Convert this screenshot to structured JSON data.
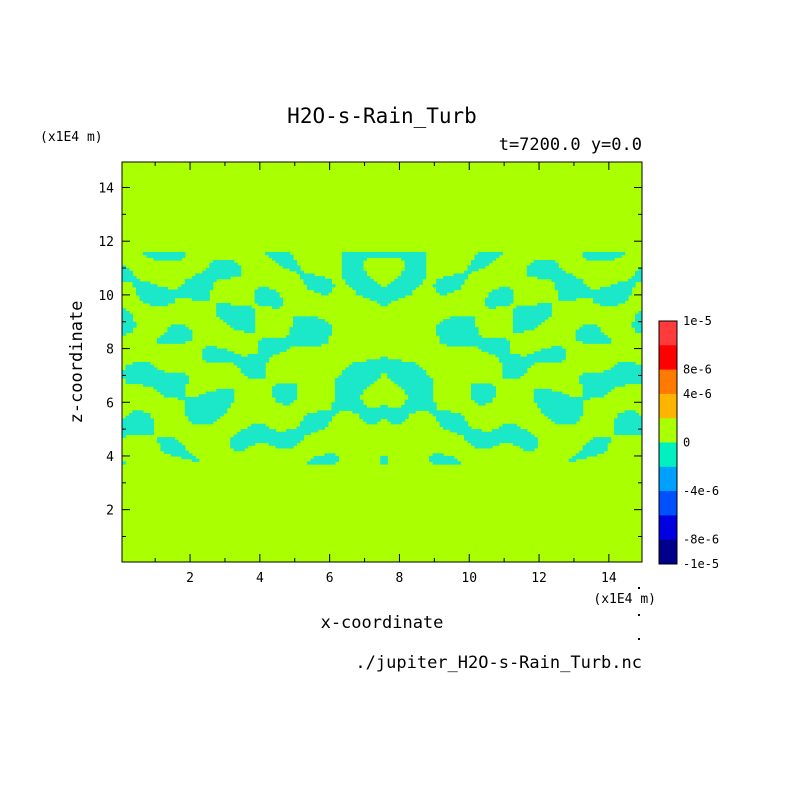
{
  "chart_data": {
    "type": "heatmap",
    "title": "H2O-s-Rain_Turb",
    "subtitle": "t=7200.0 y=0.0",
    "xlabel": "x-coordinate",
    "ylabel": "z-coordinate",
    "x_unit": "(x1E4 m)",
    "y_unit": "(x1E4 m)",
    "xlim": [
      0.05,
      14.95
    ],
    "ylim": [
      0.05,
      14.95
    ],
    "x_ticks": [
      2,
      4,
      6,
      8,
      10,
      12,
      14
    ],
    "y_ticks": [
      2,
      4,
      6,
      8,
      10,
      12,
      14
    ],
    "background_level": "0",
    "negative_level": "-4e-6 to 0",
    "source": "./jupiter_H2O-s-Rain_Turb.nc",
    "colorbar": {
      "labels": [
        "1e-5",
        "8e-6",
        "4e-6",
        "0",
        "-4e-6",
        "-8e-6",
        "-1e-5"
      ],
      "levels": [
        {
          "color": "#ff3b3b"
        },
        {
          "color": "#ff0000"
        },
        {
          "color": "#ff7a00"
        },
        {
          "color": "#ffb400"
        },
        {
          "color": "#aaff00"
        },
        {
          "color": "#00f0c0"
        },
        {
          "color": "#00a0ff"
        },
        {
          "color": "#0050ff"
        },
        {
          "color": "#0000e0"
        },
        {
          "color": "#00008a"
        }
      ]
    },
    "colors": {
      "zero": "#aaff00",
      "negative": "#1be8c8"
    }
  }
}
